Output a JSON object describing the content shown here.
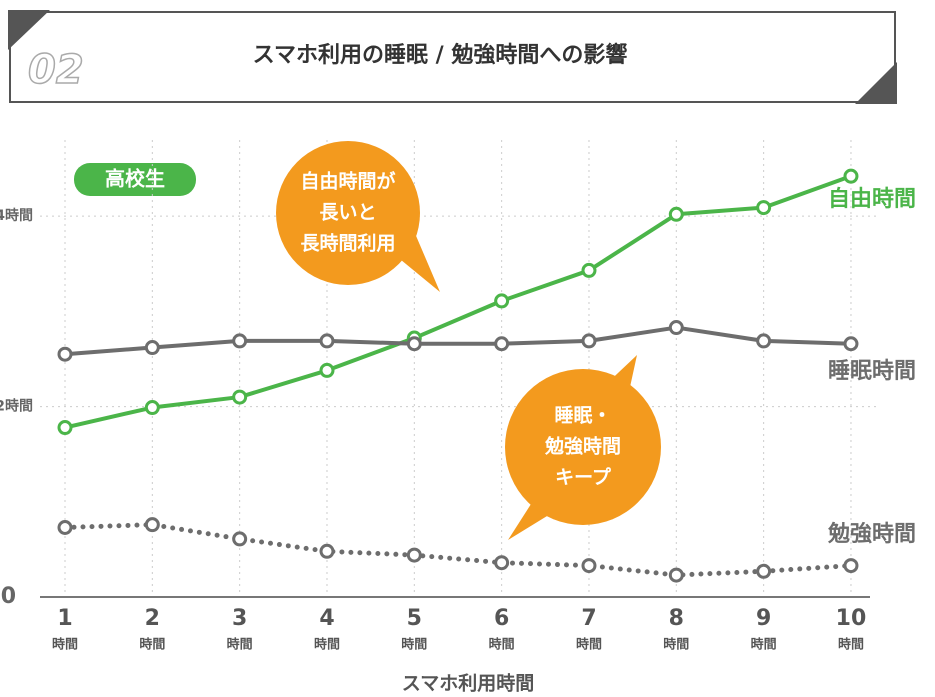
{
  "chart_data": {
    "type": "line",
    "badge": "02",
    "title": "スマホ利用の睡眠 / 勉強時間への影響",
    "group_label": "高校生",
    "x_label": "スマホ利用時間",
    "x_unit": "時間",
    "categories": [
      "1",
      "2",
      "3",
      "4",
      "5",
      "6",
      "7",
      "8",
      "9",
      "10"
    ],
    "series": [
      {
        "name": "自由時間",
        "color": "#4bb549",
        "style": "solid",
        "values": [
          1.78,
          1.99,
          2.1,
          2.38,
          2.72,
          3.11,
          3.43,
          4.02,
          4.09,
          4.42
        ]
      },
      {
        "name": "睡眠時間",
        "color": "#6d6d6d",
        "style": "solid",
        "values": [
          2.55,
          2.62,
          2.69,
          2.69,
          2.66,
          2.66,
          2.69,
          2.83,
          2.69,
          2.66
        ]
      },
      {
        "name": "勉強時間",
        "color": "#6d6d6d",
        "style": "dotted",
        "values": [
          0.73,
          0.76,
          0.61,
          0.48,
          0.44,
          0.36,
          0.33,
          0.23,
          0.27,
          0.33
        ]
      }
    ],
    "ylim": [
      0,
      4.8
    ],
    "yticks": [
      0,
      {
        "value": 2,
        "label": "2時間"
      },
      {
        "value": 4,
        "label": "4時間"
      }
    ],
    "grid": true,
    "annotations": [
      {
        "lines": [
          "自由時間が",
          "長いと",
          "長時間利用"
        ],
        "color": "#f39a1e"
      },
      {
        "lines": [
          "睡眠・",
          "勉強時間",
          "キープ"
        ],
        "color": "#f39a1e"
      }
    ]
  }
}
